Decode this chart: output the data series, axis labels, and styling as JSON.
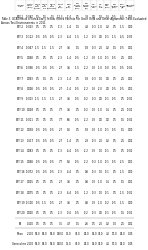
{
  "title": "Table 3. GCA Effects of Extra-Early Yellow Inbred Parents For Grain Yield and Other Agronomic Traits Evaluated Across Test Environments in 2011",
  "col_headers": [
    "Inbred\nlines",
    "Grain\nyield\n(t/ha)",
    "Days\nto\n50%\ntassel",
    "Days\nto\n50%\nsilk",
    "Days\nto\n50%\nanthesis",
    "Plant\nht.\n(cm)",
    "Cob\nht.\n(cm)",
    "Ear\nplace-\nment\n(cm)",
    "Ear\nplace-\nment\n(%)",
    "No.\nrows/\near",
    "No.\ngr./\nrow",
    "Cob\ndia.\n(cm)",
    "Ear\nlength\n(cm)",
    "100\ngr.wt\n(g)",
    "Harvest\nindex"
  ],
  "rows": [
    [
      "EEY-1",
      "-0.097",
      "1.5",
      "1.5",
      "1.5",
      "-12.3",
      "-7.4",
      "0.5",
      "3.8",
      "0.0",
      "1.0",
      "0.1",
      "-0.5",
      "-3.5",
      "0.03"
    ],
    [
      "EEY-2",
      "-0.063",
      "0.5",
      "0.5",
      "0.5",
      "-7.3",
      "-1.4",
      "1.5",
      "4.8",
      "-0.3",
      "-1.0",
      "0.2",
      "0.5",
      "-1.5",
      "0.00"
    ],
    [
      "EEY-3",
      "-0.112",
      "-0.5",
      "-0.5",
      "-0.5",
      "-2.3",
      "-4.4",
      "-1.5",
      "-1.2",
      "-0.3",
      "0.0",
      "-0.1",
      "-1.5",
      "-3.5",
      "-0.03"
    ],
    [
      "EEY-4",
      "-0.047",
      "-1.5",
      "-1.5",
      "-1.5",
      "2.7",
      "3.6",
      "1.5",
      "1.8",
      "-0.3",
      "2.0",
      "0.2",
      "1.5",
      "-0.5",
      "0.01"
    ],
    [
      "EEY-5",
      "0.068",
      "0.5",
      "0.5",
      "0.5",
      "-2.3",
      "-1.4",
      "-0.5",
      "-1.2",
      "0.3",
      "-1.0",
      "-0.1",
      "-0.5",
      "2.5",
      "0.01"
    ],
    [
      "EEY-6",
      "-0.098",
      "-0.5",
      "-0.5",
      "-0.5",
      "2.7",
      "3.6",
      "-1.5",
      "-2.2",
      "0.3",
      "-1.0",
      "-0.0",
      "-0.5",
      "-0.5",
      "-0.02"
    ],
    [
      "EEY-7",
      "0.093",
      "0.5",
      "1.5",
      "0.5",
      "-2.3",
      "-1.4",
      "0.5",
      "1.8",
      "-0.3",
      "1.0",
      "0.0",
      "0.5",
      "2.5",
      "0.01"
    ],
    [
      "EEY-8",
      "0.008",
      "-0.5",
      "-0.5",
      "-0.5",
      "2.7",
      "-1.4",
      "-0.5",
      "-2.2",
      "0.3",
      "-2.0",
      "0.0",
      "-0.5",
      "-0.5",
      "0.01"
    ],
    [
      "EEY-9",
      "-0.003",
      "-1.5",
      "-1.5",
      "-1.5",
      "2.7",
      "3.6",
      "-0.5",
      "-0.2",
      "-0.3",
      "0.0",
      "-0.1",
      "-0.5",
      "0.5",
      "-0.00"
    ],
    [
      "EEY-10",
      "0.028",
      "0.5",
      "0.5",
      "0.5",
      "7.7",
      "3.6",
      "0.5",
      "-0.2",
      "0.3",
      "-1.0",
      "0.1",
      "0.5",
      "2.5",
      "-0.01"
    ],
    [
      "EEY-11",
      "-0.011",
      "0.5",
      "0.5",
      "0.5",
      "7.7",
      "6.6",
      "-0.5",
      "-2.2",
      "0.3",
      "0.0",
      "0.0",
      "0.5",
      "1.5",
      "-0.02"
    ],
    [
      "EEY-12",
      "0.038",
      "-0.5",
      "-0.5",
      "-0.5",
      "2.7",
      "1.6",
      "0.5",
      "1.8",
      "0.3",
      "-1.0",
      "-0.1",
      "-0.5",
      "1.5",
      "0.00"
    ],
    [
      "EEY-13",
      "0.117",
      "-0.5",
      "-0.5",
      "-0.5",
      "2.7",
      "-1.4",
      "0.5",
      "2.8",
      "-0.3",
      "2.0",
      "0.2",
      "0.5",
      "2.5",
      "0.02"
    ],
    [
      "EEY-14",
      "0.083",
      "0.5",
      "0.5",
      "0.5",
      "-7.3",
      "-4.4",
      "-0.5",
      "-2.2",
      "0.3",
      "1.0",
      "-0.1",
      "0.5",
      "0.5",
      "-0.02"
    ],
    [
      "EEY-15",
      "0.068",
      "-0.5",
      "-0.5",
      "-0.5",
      "7.7",
      "5.6",
      "-0.5",
      "-2.2",
      "-0.3",
      "-1.0",
      "-0.1",
      "-0.5",
      "-2.5",
      "0.01"
    ],
    [
      "EEY-16",
      "-0.072",
      "-0.5",
      "-0.5",
      "-0.5",
      "-7.3",
      "-4.4",
      "0.5",
      "0.8",
      "-0.3",
      "1.0",
      "-0.1",
      "0.5",
      "-1.5",
      "0.00"
    ],
    [
      "EEY-17",
      "0.025",
      "0.5",
      "0.5",
      "0.5",
      "2.7",
      "3.6",
      "0.5",
      "0.8",
      "0.3",
      "-1.0",
      "0.1",
      "0.5",
      "1.5",
      "0.01"
    ],
    [
      "EEY-18",
      "0.075",
      "0.5",
      "0.5",
      "0.5",
      "-2.3",
      "-4.4",
      "-0.5",
      "-1.2",
      "-0.3",
      "1.0",
      "-0.1",
      "0.5",
      "-1.5",
      "-0.01"
    ],
    [
      "EEY-19",
      "-0.100",
      "-0.5",
      "-1.5",
      "-0.5",
      "2.7",
      "3.6",
      "0.5",
      "0.8",
      "0.3",
      "-1.0",
      "-0.2",
      "-0.5",
      "-1.5",
      "0.00"
    ],
    [
      "EEY-20",
      "0.000",
      "0.5",
      "0.5",
      "0.5",
      "-2.3",
      "-0.4",
      "-0.5",
      "-0.2",
      "-0.3",
      "0.0",
      "-0.1",
      "-0.5",
      "1.5",
      "-0.01"
    ],
    [
      "SE",
      "0.100",
      "0.5",
      "0.5",
      "0.5",
      "7.5",
      "4.7",
      "1.5",
      "2.6",
      "0.5",
      "2.0",
      "0.2",
      "1.0",
      "2.5",
      "0.02"
    ],
    [
      "Mean",
      "2.100",
      "53.0",
      "54.0",
      "53.0",
      "140.0",
      "75.0",
      "35.0",
      "25.0",
      "14.0",
      "36.0",
      "4.0",
      "17.0",
      "25.0",
      "0.45"
    ],
    [
      "General mean",
      "2.100",
      "53.0",
      "54.0",
      "53.0",
      "140.0",
      "75.0",
      "35.0",
      "25.0",
      "14.0",
      "36.0",
      "4.0",
      "17.0",
      "25.0",
      "0.45"
    ]
  ],
  "bg_color": "#ffffff",
  "text_color": "#000000",
  "sep_row_indices": [
    20,
    21
  ],
  "font_size": 1.8,
  "header_font_size": 1.7,
  "title_font_size": 1.9
}
